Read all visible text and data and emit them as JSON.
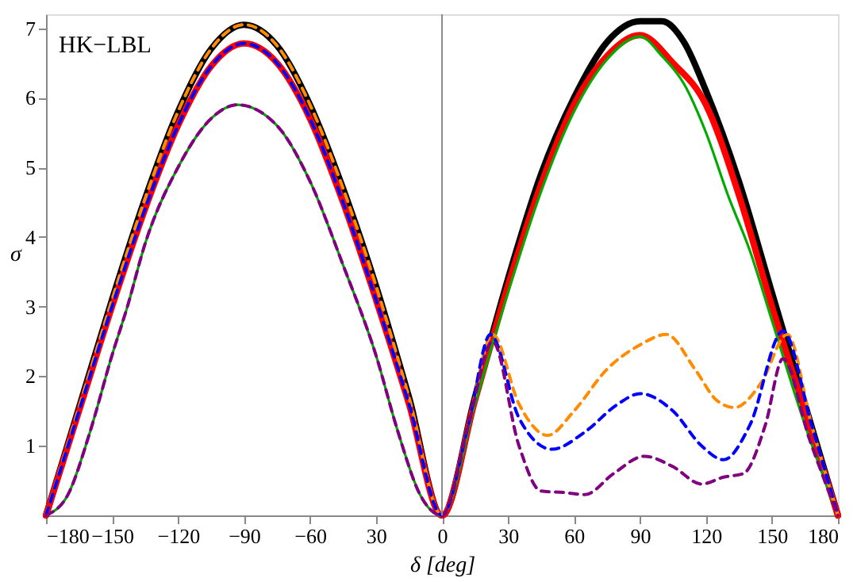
{
  "chart_data": {
    "type": "line",
    "xlabel": "δ [deg]",
    "ylabel": "σ",
    "annotations": [
      "HK−LBL"
    ],
    "xlim": [
      -180,
      180
    ],
    "ylim": [
      0,
      7.2
    ],
    "xticks": [
      -180,
      -150,
      -120,
      -90,
      -60,
      {
        "value": -30,
        "label": "30"
      },
      0,
      30,
      60,
      90,
      120,
      150,
      180
    ],
    "yticks": [
      1,
      2,
      3,
      4,
      5,
      6,
      7
    ],
    "grid": false,
    "marker": "none",
    "ref_lines": [
      {
        "axis": "x",
        "value": 0,
        "color": "#8c8c8c"
      }
    ],
    "series": [
      {
        "color": "#000000",
        "line_style": "solid",
        "x": [
          -180,
          -165,
          -150,
          -135,
          -120,
          -105,
          -90,
          -75,
          -60,
          -45,
          -30,
          -15,
          0,
          15,
          30,
          45,
          60,
          75,
          90,
          100,
          110,
          120,
          135,
          150,
          165,
          180
        ],
        "values": [
          0,
          1.55,
          3.1,
          4.55,
          5.8,
          6.7,
          7.05,
          6.75,
          5.9,
          4.7,
          3.3,
          1.7,
          0,
          1.7,
          3.4,
          4.9,
          6.0,
          6.8,
          7.1,
          7.1,
          6.8,
          6.1,
          4.8,
          3.2,
          1.6,
          0
        ]
      },
      {
        "color": "#ff8c00",
        "line_style": "dashed",
        "x": [
          -180,
          -165,
          -150,
          -135,
          -120,
          -105,
          -90,
          -75,
          -60,
          -45,
          -30,
          -15,
          0,
          12,
          23,
          35,
          48,
          60,
          75,
          90,
          102,
          115,
          125,
          133,
          145,
          157,
          168,
          180
        ],
        "values": [
          0,
          1.55,
          3.1,
          4.55,
          5.8,
          6.7,
          7.05,
          6.75,
          5.9,
          4.7,
          3.3,
          1.7,
          0,
          1.3,
          2.6,
          1.6,
          1.15,
          1.5,
          2.1,
          2.45,
          2.6,
          2.1,
          1.65,
          1.55,
          1.9,
          2.6,
          1.3,
          0
        ]
      },
      {
        "color": "#ff0000",
        "line_style": "solid",
        "x": [
          -180,
          -165,
          -150,
          -135,
          -120,
          -105,
          -90,
          -75,
          -60,
          -45,
          -30,
          -15,
          0,
          15,
          30,
          45,
          60,
          75,
          90,
          105,
          120,
          135,
          150,
          165,
          180
        ],
        "values": [
          0,
          1.5,
          3.0,
          4.4,
          5.6,
          6.45,
          6.78,
          6.5,
          5.7,
          4.5,
          3.1,
          1.6,
          0,
          1.65,
          3.3,
          4.75,
          5.9,
          6.6,
          6.9,
          6.5,
          5.9,
          4.6,
          3.0,
          1.5,
          0
        ]
      },
      {
        "color": "#0000ff",
        "line_style": "dashed",
        "x": [
          -180,
          -165,
          -150,
          -135,
          -120,
          -105,
          -90,
          -75,
          -60,
          -45,
          -30,
          -15,
          0,
          12,
          22,
          35,
          50,
          65,
          80,
          90,
          105,
          118,
          128,
          140,
          155,
          168,
          180
        ],
        "values": [
          0,
          1.5,
          3.0,
          4.4,
          5.6,
          6.45,
          6.78,
          6.5,
          5.7,
          4.5,
          3.1,
          1.6,
          0,
          1.3,
          2.6,
          1.4,
          0.95,
          1.2,
          1.6,
          1.75,
          1.5,
          1.0,
          0.8,
          1.3,
          2.65,
          1.3,
          0
        ]
      },
      {
        "color": "#00aa00",
        "line_style": "solid",
        "x": [
          -180,
          -170,
          -160,
          -150,
          -143,
          -135,
          -120,
          -105,
          -93,
          -75,
          -60,
          -45,
          -30,
          -20,
          -10,
          0,
          15,
          30,
          45,
          60,
          75,
          90,
          100,
          110,
          120,
          130,
          140,
          150,
          165,
          180
        ],
        "values": [
          0,
          0.3,
          1.2,
          2.3,
          3.0,
          3.9,
          5.0,
          5.7,
          5.9,
          5.6,
          4.8,
          3.6,
          2.3,
          1.2,
          0.3,
          0,
          1.6,
          3.2,
          4.65,
          5.8,
          6.55,
          6.88,
          6.6,
          6.2,
          5.5,
          4.6,
          3.8,
          2.8,
          1.3,
          0
        ]
      },
      {
        "color": "#800080",
        "line_style": "dashed",
        "x": [
          -180,
          -170,
          -160,
          -150,
          -143,
          -135,
          -120,
          -105,
          -93,
          -75,
          -60,
          -45,
          -30,
          -20,
          -10,
          0,
          12,
          23,
          35,
          45,
          55,
          65,
          78,
          92,
          105,
          118,
          128,
          137,
          147,
          155,
          167,
          180
        ],
        "values": [
          0,
          0.3,
          1.2,
          2.3,
          3.0,
          3.9,
          5.0,
          5.7,
          5.9,
          5.6,
          4.8,
          3.6,
          2.3,
          1.2,
          0.3,
          0,
          1.3,
          2.5,
          1.0,
          0.35,
          0.33,
          0.3,
          0.6,
          0.85,
          0.7,
          0.45,
          0.55,
          0.6,
          1.3,
          2.25,
          1.1,
          0
        ]
      }
    ]
  }
}
